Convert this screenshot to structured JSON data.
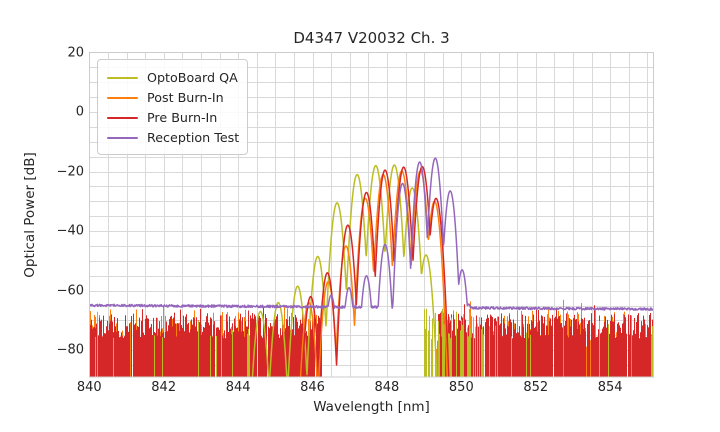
{
  "chart_data": {
    "type": "line",
    "title": "D4347 V20032 Ch. 3",
    "xlabel": "Wavelength [nm]",
    "ylabel": "Optical Power [dB]",
    "xlim": [
      840,
      855.16
    ],
    "ylim": [
      -89,
      20
    ],
    "x_ticks": [
      {
        "v": 840,
        "label": "840"
      },
      {
        "v": 842,
        "label": "842"
      },
      {
        "v": 844,
        "label": "844"
      },
      {
        "v": 846,
        "label": "846"
      },
      {
        "v": 848,
        "label": "848"
      },
      {
        "v": 850,
        "label": "850"
      },
      {
        "v": 852,
        "label": "852"
      },
      {
        "v": 854,
        "label": "854"
      }
    ],
    "y_ticks": [
      {
        "v": 20,
        "label": "20"
      },
      {
        "v": 0,
        "label": "0"
      },
      {
        "v": -20,
        "label": "−20"
      },
      {
        "v": -40,
        "label": "−40"
      },
      {
        "v": -60,
        "label": "−60"
      },
      {
        "v": -80,
        "label": "−80"
      }
    ],
    "grid": {
      "x_minor_step": 0.5,
      "y_minor_step": 5,
      "color": "#d9d9d9",
      "border_color": "#cccccc"
    },
    "legend_position": "upper-left",
    "random_seed": 7,
    "noise_draw_order": [
      "Post Burn-In",
      "Pre Burn-In",
      "OptoBoard QA"
    ],
    "series": [
      {
        "name": "OptoBoard QA",
        "color": "#bcbd22",
        "mode_width": 0.25,
        "mode_k": 30,
        "modes": [
          [
            844.6,
            -67
          ],
          [
            845.08,
            -64
          ],
          [
            845.6,
            -58.5
          ],
          [
            846.14,
            -48.5
          ],
          [
            846.66,
            -30.5
          ],
          [
            847.2,
            -21
          ],
          [
            847.7,
            -18
          ],
          [
            848.2,
            -17.8
          ],
          [
            848.68,
            -25.5
          ],
          [
            849.05,
            -48
          ]
        ],
        "noise_regions": [
          {
            "x0": 840.0,
            "x1": 844.4,
            "density": 0.05,
            "top_min": -76,
            "top_max": -70
          },
          {
            "x0": 848.95,
            "x1": 850.6,
            "density": 0.5,
            "top_min": -77,
            "top_max": -65.5
          },
          {
            "x0": 850.6,
            "x1": 855.16,
            "density": 0.05,
            "top_min": -76,
            "top_max": -70
          }
        ]
      },
      {
        "name": "Post Burn-In",
        "color": "#ff7f0e",
        "mode_width": 0.25,
        "mode_k": 32,
        "modes": [
          [
            845.9,
            -64
          ],
          [
            846.42,
            -57
          ],
          [
            846.9,
            -45
          ],
          [
            847.42,
            -29
          ],
          [
            847.9,
            -21
          ],
          [
            848.4,
            -19.8
          ],
          [
            848.9,
            -19.8
          ],
          [
            849.28,
            -30
          ]
        ],
        "noise_regions": [
          {
            "x0": 840.0,
            "x1": 846.2,
            "density": 0.55,
            "top_min": -80,
            "top_max": -66
          },
          {
            "x0": 849.3,
            "x1": 855.16,
            "density": 0.55,
            "top_min": -80,
            "top_max": -66
          }
        ]
      },
      {
        "name": "Pre Burn-In",
        "color": "#d62728",
        "mode_width": 0.25,
        "mode_k": 32,
        "modes": [
          [
            845.95,
            -62
          ],
          [
            846.4,
            -54
          ],
          [
            846.95,
            -38
          ],
          [
            847.45,
            -27
          ],
          [
            847.95,
            -19.5
          ],
          [
            848.45,
            -18.5
          ],
          [
            848.95,
            -18.3
          ],
          [
            849.32,
            -29
          ]
        ],
        "noise_regions": [
          {
            "x0": 840.0,
            "x1": 846.25,
            "density": 0.97,
            "top_min": -76,
            "top_max": -67.5
          },
          {
            "x0": 849.35,
            "x1": 855.16,
            "density": 0.97,
            "top_min": -76,
            "top_max": -67.5
          }
        ]
      },
      {
        "name": "Reception Test",
        "color": "#9467bd",
        "mode_width": 0.25,
        "mode_k": 38,
        "modes": [
          [
            846.5,
            -61.5
          ],
          [
            846.98,
            -59
          ],
          [
            847.45,
            -55
          ],
          [
            847.95,
            -44.5
          ],
          [
            848.42,
            -24
          ],
          [
            848.88,
            -16.8
          ],
          [
            849.3,
            -15.5
          ],
          [
            849.7,
            -26.5
          ],
          [
            850.02,
            -53
          ],
          [
            850.2,
            -64.5
          ]
        ],
        "floor": {
          "level_start": -64.9,
          "level_end": -66.2,
          "noise": 0.8
        }
      }
    ]
  }
}
